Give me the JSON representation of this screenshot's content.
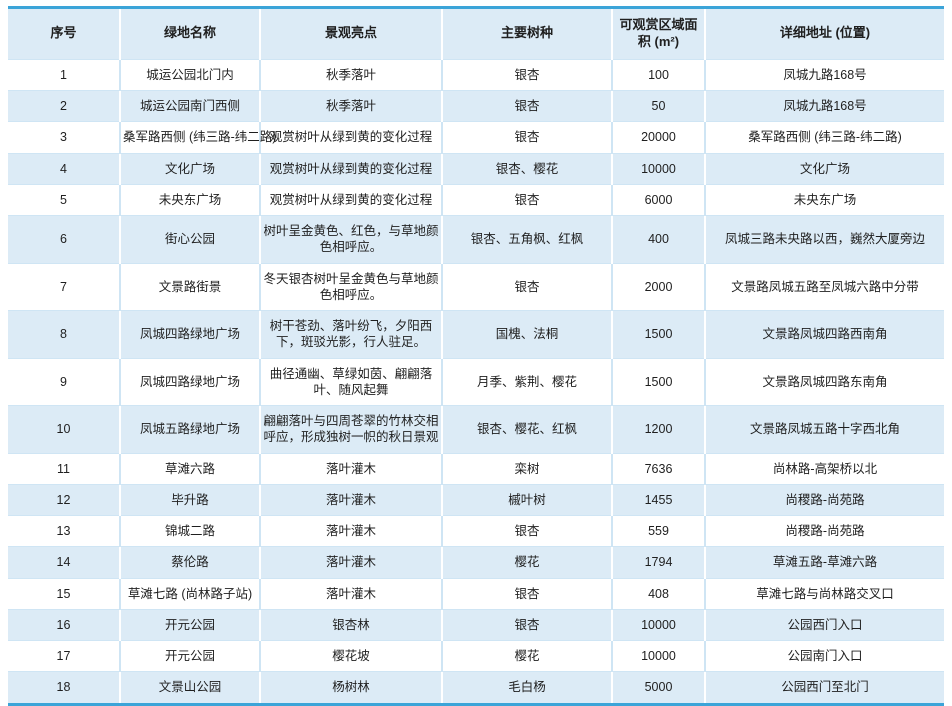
{
  "table": {
    "columns": [
      "序号",
      "绿地名称",
      "景观亮点",
      "主要树种",
      "可观赏区域面积 (m²)",
      "详细地址 (位置)"
    ],
    "rows": [
      [
        "1",
        "城运公园北门内",
        "秋季落叶",
        "银杏",
        "100",
        "凤城九路168号"
      ],
      [
        "2",
        "城运公园南门西侧",
        "秋季落叶",
        "银杏",
        "50",
        "凤城九路168号"
      ],
      [
        "3",
        "桑军路西侧 (纬三路-纬二路)",
        "观赏树叶从绿到黄的变化过程",
        "银杏",
        "20000",
        "桑军路西侧 (纬三路-纬二路)"
      ],
      [
        "4",
        "文化广场",
        "观赏树叶从绿到黄的变化过程",
        "银杏、樱花",
        "10000",
        "文化广场"
      ],
      [
        "5",
        "未央东广场",
        "观赏树叶从绿到黄的变化过程",
        "银杏",
        "6000",
        "未央东广场"
      ],
      [
        "6",
        "街心公园",
        "树叶呈金黄色、红色，与草地颜色相呼应。",
        "银杏、五角枫、红枫",
        "400",
        "凤城三路未央路以西，巍然大厦旁边"
      ],
      [
        "7",
        "文景路街景",
        "冬天银杏树叶呈金黄色与草地颜色相呼应。",
        "银杏",
        "2000",
        "文景路凤城五路至凤城六路中分带"
      ],
      [
        "8",
        "凤城四路绿地广场",
        "树干苍劲、落叶纷飞，夕阳西下，斑驳光影，行人驻足。",
        "国槐、法桐",
        "1500",
        "文景路凤城四路西南角"
      ],
      [
        "9",
        "凤城四路绿地广场",
        "曲径通幽、草绿如茵、翩翩落叶、随风起舞",
        "月季、紫荆、樱花",
        "1500",
        "文景路凤城四路东南角"
      ],
      [
        "10",
        "凤城五路绿地广场",
        "翩翩落叶与四周苍翠的竹林交相呼应，形成独树一帜的秋日景观",
        "银杏、樱花、红枫",
        "1200",
        "文景路凤城五路十字西北角"
      ],
      [
        "11",
        "草滩六路",
        "落叶灌木",
        "栾树",
        "7636",
        "尚林路-高架桥以北"
      ],
      [
        "12",
        "毕升路",
        "落叶灌木",
        "槭叶树",
        "1455",
        "尚稷路-尚苑路"
      ],
      [
        "13",
        "锦城二路",
        "落叶灌木",
        "银杏",
        "559",
        "尚稷路-尚苑路"
      ],
      [
        "14",
        "蔡伦路",
        "落叶灌木",
        "樱花",
        "1794",
        "草滩五路-草滩六路"
      ],
      [
        "15",
        "草滩七路 (尚林路子站)",
        "落叶灌木",
        "银杏",
        "408",
        "草滩七路与尚林路交叉口"
      ],
      [
        "16",
        "开元公园",
        "银杏林",
        "银杏",
        "10000",
        "公园西门入口"
      ],
      [
        "17",
        "开元公园",
        "樱花坡",
        "樱花",
        "10000",
        "公园南门入口"
      ],
      [
        "18",
        "文景山公园",
        "杨树林",
        "毛白杨",
        "5000",
        "公园西门至北门"
      ]
    ]
  },
  "colors": {
    "accent_line": "#3BA4D8",
    "band_row": "#DCEBF6",
    "divider_light": "#CFE5F4",
    "text": "#1F1F1F"
  }
}
